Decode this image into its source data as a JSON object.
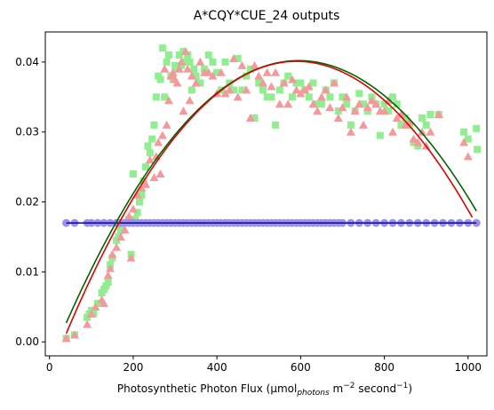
{
  "chart_data": {
    "type": "scatter",
    "title": "A*CQY*CUE_24 outputs",
    "xlabel": {
      "base": "Photosynthetic Photon Flux (µmol",
      "sub": "photons",
      "mid": " m",
      "sup1": "−2",
      "mid2": " second",
      "sup2": "−1",
      "end": ")"
    },
    "ylabel": "",
    "xlim": [
      -10,
      1045
    ],
    "ylim": [
      -0.002,
      0.0443
    ],
    "xticks": [
      0,
      200,
      400,
      600,
      800,
      1000
    ],
    "yticks": [
      0.0,
      0.01,
      0.02,
      0.03,
      0.04
    ],
    "xtick_labels": [
      "0",
      "200",
      "400",
      "600",
      "800",
      "1000"
    ],
    "ytick_labels": [
      "0.00",
      "0.01",
      "0.02",
      "0.03",
      "0.04"
    ],
    "legend": "none",
    "grid": false,
    "colors": {
      "squares": "#90ee90",
      "triangles": "#f4999b",
      "circles": "#9d91e6",
      "flat_line": "#0000cc",
      "green_curve": "#006400",
      "red_curve": "#dd0000"
    },
    "series": [
      {
        "marker": "square",
        "points": [
          [
            40,
            0.0005
          ],
          [
            60,
            0.001
          ],
          [
            90,
            0.0035
          ],
          [
            95,
            0.004
          ],
          [
            100,
            0.0045
          ],
          [
            105,
            0.004
          ],
          [
            115,
            0.0055
          ],
          [
            125,
            0.007
          ],
          [
            130,
            0.0075
          ],
          [
            135,
            0.008
          ],
          [
            140,
            0.0085
          ],
          [
            145,
            0.011
          ],
          [
            150,
            0.012
          ],
          [
            160,
            0.0145
          ],
          [
            165,
            0.015
          ],
          [
            170,
            0.016
          ],
          [
            180,
            0.017
          ],
          [
            190,
            0.0175
          ],
          [
            195,
            0.0125
          ],
          [
            200,
            0.024
          ],
          [
            205,
            0.0175
          ],
          [
            210,
            0.0185
          ],
          [
            215,
            0.02
          ],
          [
            220,
            0.021
          ],
          [
            225,
            0.023
          ],
          [
            230,
            0.025
          ],
          [
            235,
            0.028
          ],
          [
            240,
            0.027
          ],
          [
            245,
            0.029
          ],
          [
            250,
            0.031
          ],
          [
            255,
            0.035
          ],
          [
            260,
            0.038
          ],
          [
            265,
            0.0375
          ],
          [
            270,
            0.042
          ],
          [
            275,
            0.035
          ],
          [
            280,
            0.04
          ],
          [
            285,
            0.041
          ],
          [
            290,
            0.038
          ],
          [
            295,
            0.0375
          ],
          [
            300,
            0.0395
          ],
          [
            305,
            0.039
          ],
          [
            310,
            0.041
          ],
          [
            315,
            0.0395
          ],
          [
            320,
            0.0415
          ],
          [
            325,
            0.04
          ],
          [
            330,
            0.041
          ],
          [
            335,
            0.04
          ],
          [
            340,
            0.036
          ],
          [
            345,
            0.039
          ],
          [
            350,
            0.038
          ],
          [
            360,
            0.037
          ],
          [
            370,
            0.039
          ],
          [
            380,
            0.041
          ],
          [
            390,
            0.04
          ],
          [
            400,
            0.0385
          ],
          [
            410,
            0.036
          ],
          [
            420,
            0.04
          ],
          [
            430,
            0.037
          ],
          [
            440,
            0.036
          ],
          [
            450,
            0.0405
          ],
          [
            460,
            0.036
          ],
          [
            470,
            0.038
          ],
          [
            480,
            0.039
          ],
          [
            490,
            0.032
          ],
          [
            500,
            0.037
          ],
          [
            510,
            0.036
          ],
          [
            520,
            0.035
          ],
          [
            530,
            0.035
          ],
          [
            540,
            0.031
          ],
          [
            550,
            0.036
          ],
          [
            560,
            0.037
          ],
          [
            570,
            0.038
          ],
          [
            580,
            0.035
          ],
          [
            590,
            0.037
          ],
          [
            600,
            0.037
          ],
          [
            610,
            0.036
          ],
          [
            620,
            0.035
          ],
          [
            630,
            0.037
          ],
          [
            640,
            0.034
          ],
          [
            650,
            0.034
          ],
          [
            660,
            0.036
          ],
          [
            670,
            0.035
          ],
          [
            680,
            0.037
          ],
          [
            690,
            0.033
          ],
          [
            700,
            0.035
          ],
          [
            710,
            0.034
          ],
          [
            720,
            0.031
          ],
          [
            730,
            0.033
          ],
          [
            740,
            0.0355
          ],
          [
            750,
            0.034
          ],
          [
            760,
            0.033
          ],
          [
            770,
            0.035
          ],
          [
            780,
            0.034
          ],
          [
            790,
            0.0295
          ],
          [
            800,
            0.034
          ],
          [
            810,
            0.033
          ],
          [
            820,
            0.035
          ],
          [
            830,
            0.034
          ],
          [
            840,
            0.031
          ],
          [
            850,
            0.032
          ],
          [
            860,
            0.031
          ],
          [
            870,
            0.0285
          ],
          [
            880,
            0.028
          ],
          [
            890,
            0.032
          ],
          [
            900,
            0.031
          ],
          [
            910,
            0.0325
          ],
          [
            930,
            0.0325
          ],
          [
            990,
            0.03
          ],
          [
            1000,
            0.029
          ],
          [
            1020,
            0.0305
          ],
          [
            1022,
            0.0275
          ]
        ]
      },
      {
        "marker": "triangle",
        "points": [
          [
            40,
            0.0005
          ],
          [
            60,
            0.001
          ],
          [
            90,
            0.0025
          ],
          [
            100,
            0.004
          ],
          [
            110,
            0.005
          ],
          [
            125,
            0.006
          ],
          [
            130,
            0.0055
          ],
          [
            140,
            0.0095
          ],
          [
            145,
            0.0105
          ],
          [
            150,
            0.0125
          ],
          [
            160,
            0.0135
          ],
          [
            170,
            0.015
          ],
          [
            180,
            0.016
          ],
          [
            190,
            0.018
          ],
          [
            195,
            0.012
          ],
          [
            200,
            0.019
          ],
          [
            210,
            0.021
          ],
          [
            220,
            0.022
          ],
          [
            230,
            0.0225
          ],
          [
            240,
            0.026
          ],
          [
            250,
            0.0235
          ],
          [
            255,
            0.0265
          ],
          [
            260,
            0.0285
          ],
          [
            265,
            0.024
          ],
          [
            270,
            0.0295
          ],
          [
            275,
            0.039
          ],
          [
            280,
            0.031
          ],
          [
            285,
            0.0345
          ],
          [
            290,
            0.038
          ],
          [
            295,
            0.0385
          ],
          [
            300,
            0.0375
          ],
          [
            305,
            0.037
          ],
          [
            310,
            0.039
          ],
          [
            315,
            0.04
          ],
          [
            320,
            0.033
          ],
          [
            325,
            0.0415
          ],
          [
            330,
            0.039
          ],
          [
            335,
            0.0345
          ],
          [
            340,
            0.038
          ],
          [
            350,
            0.037
          ],
          [
            360,
            0.04
          ],
          [
            370,
            0.0385
          ],
          [
            380,
            0.0385
          ],
          [
            390,
            0.038
          ],
          [
            400,
            0.0355
          ],
          [
            410,
            0.0385
          ],
          [
            420,
            0.0355
          ],
          [
            430,
            0.036
          ],
          [
            440,
            0.0405
          ],
          [
            450,
            0.035
          ],
          [
            460,
            0.0395
          ],
          [
            470,
            0.036
          ],
          [
            480,
            0.032
          ],
          [
            490,
            0.0395
          ],
          [
            500,
            0.038
          ],
          [
            510,
            0.037
          ],
          [
            520,
            0.0385
          ],
          [
            530,
            0.0365
          ],
          [
            540,
            0.0385
          ],
          [
            550,
            0.034
          ],
          [
            560,
            0.037
          ],
          [
            570,
            0.034
          ],
          [
            580,
            0.0375
          ],
          [
            590,
            0.036
          ],
          [
            600,
            0.0355
          ],
          [
            610,
            0.036
          ],
          [
            620,
            0.0365
          ],
          [
            630,
            0.034
          ],
          [
            640,
            0.033
          ],
          [
            650,
            0.035
          ],
          [
            660,
            0.036
          ],
          [
            670,
            0.0335
          ],
          [
            680,
            0.037
          ],
          [
            690,
            0.032
          ],
          [
            700,
            0.0335
          ],
          [
            710,
            0.035
          ],
          [
            720,
            0.03
          ],
          [
            730,
            0.033
          ],
          [
            740,
            0.034
          ],
          [
            750,
            0.031
          ],
          [
            760,
            0.0335
          ],
          [
            770,
            0.0345
          ],
          [
            780,
            0.034
          ],
          [
            790,
            0.033
          ],
          [
            800,
            0.033
          ],
          [
            810,
            0.0345
          ],
          [
            820,
            0.03
          ],
          [
            830,
            0.032
          ],
          [
            840,
            0.0325
          ],
          [
            850,
            0.031
          ],
          [
            860,
            0.0315
          ],
          [
            870,
            0.029
          ],
          [
            880,
            0.0285
          ],
          [
            890,
            0.03
          ],
          [
            900,
            0.028
          ],
          [
            910,
            0.03
          ],
          [
            930,
            0.0325
          ],
          [
            990,
            0.0285
          ],
          [
            1000,
            0.0265
          ]
        ]
      },
      {
        "marker": "circle",
        "points": [
          [
            40,
            0.017
          ],
          [
            60,
            0.017
          ],
          [
            90,
            0.017
          ],
          [
            100,
            0.017
          ],
          [
            115,
            0.017
          ],
          [
            130,
            0.017
          ],
          [
            145,
            0.017
          ],
          [
            160,
            0.017
          ],
          [
            170,
            0.017
          ],
          [
            180,
            0.017
          ],
          [
            190,
            0.017
          ],
          [
            200,
            0.017
          ],
          [
            210,
            0.017
          ],
          [
            220,
            0.017
          ],
          [
            230,
            0.017
          ],
          [
            240,
            0.017
          ],
          [
            250,
            0.017
          ],
          [
            260,
            0.017
          ],
          [
            270,
            0.017
          ],
          [
            280,
            0.017
          ],
          [
            290,
            0.017
          ],
          [
            300,
            0.017
          ],
          [
            310,
            0.017
          ],
          [
            320,
            0.017
          ],
          [
            330,
            0.017
          ],
          [
            340,
            0.017
          ],
          [
            350,
            0.017
          ],
          [
            360,
            0.017
          ],
          [
            370,
            0.017
          ],
          [
            380,
            0.017
          ],
          [
            390,
            0.017
          ],
          [
            400,
            0.017
          ],
          [
            410,
            0.017
          ],
          [
            420,
            0.017
          ],
          [
            430,
            0.017
          ],
          [
            440,
            0.017
          ],
          [
            450,
            0.017
          ],
          [
            460,
            0.017
          ],
          [
            470,
            0.017
          ],
          [
            480,
            0.017
          ],
          [
            490,
            0.017
          ],
          [
            500,
            0.017
          ],
          [
            510,
            0.017
          ],
          [
            520,
            0.017
          ],
          [
            530,
            0.017
          ],
          [
            540,
            0.017
          ],
          [
            550,
            0.017
          ],
          [
            560,
            0.017
          ],
          [
            570,
            0.017
          ],
          [
            580,
            0.017
          ],
          [
            590,
            0.017
          ],
          [
            600,
            0.017
          ],
          [
            610,
            0.017
          ],
          [
            620,
            0.017
          ],
          [
            630,
            0.017
          ],
          [
            640,
            0.017
          ],
          [
            650,
            0.017
          ],
          [
            660,
            0.017
          ],
          [
            670,
            0.017
          ],
          [
            680,
            0.017
          ],
          [
            690,
            0.017
          ],
          [
            700,
            0.017
          ],
          [
            720,
            0.017
          ],
          [
            740,
            0.017
          ],
          [
            760,
            0.017
          ],
          [
            780,
            0.017
          ],
          [
            800,
            0.017
          ],
          [
            820,
            0.017
          ],
          [
            840,
            0.017
          ],
          [
            860,
            0.017
          ],
          [
            880,
            0.017
          ],
          [
            900,
            0.017
          ],
          [
            920,
            0.017
          ],
          [
            940,
            0.017
          ],
          [
            960,
            0.017
          ],
          [
            980,
            0.017
          ],
          [
            1000,
            0.017
          ],
          [
            1020,
            0.017
          ]
        ]
      }
    ],
    "lines": [
      {
        "kind": "flat",
        "x": [
          40,
          1020
        ],
        "y": [
          0.017,
          0.017
        ]
      },
      {
        "kind": "quadratic",
        "x": [
          40,
          1020
        ],
        "peak_x": 595,
        "peak_y": 0.0402,
        "end_y": 0.0187,
        "start_y": 0.0027,
        "curve": "green"
      },
      {
        "kind": "quadratic",
        "x": [
          40,
          1010
        ],
        "peak_x": 590,
        "peak_y": 0.0401,
        "end_y": 0.0178,
        "start_y": 0.0012,
        "curve": "red"
      }
    ]
  }
}
